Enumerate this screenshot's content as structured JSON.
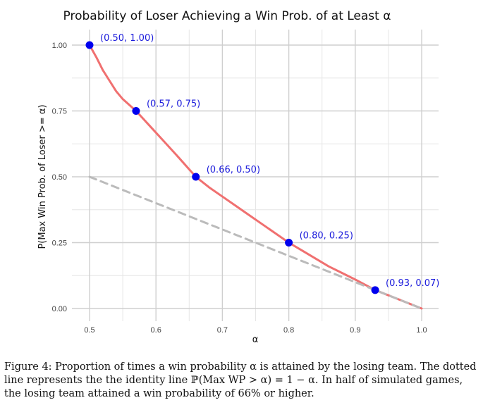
{
  "chart_data": {
    "type": "line",
    "title": "Probability of Loser Achieving a Win Prob. of at Least α",
    "xlabel": "α",
    "ylabel": "P(Max Win Prob. of Loser >= α)",
    "xlim": [
      0.5,
      1.0
    ],
    "ylim": [
      0.0,
      1.0
    ],
    "x_ticks": [
      "0.5",
      "0.6",
      "0.7",
      "0.8",
      "0.9",
      "1.0"
    ],
    "y_ticks": [
      "0.00",
      "0.25",
      "0.50",
      "0.75",
      "1.00"
    ],
    "grid": true,
    "series": [
      {
        "color": "#f07070",
        "style": "solid",
        "x": [
          0.5,
          0.51,
          0.52,
          0.53,
          0.54,
          0.55,
          0.57,
          0.59,
          0.61,
          0.63,
          0.66,
          0.68,
          0.7,
          0.72,
          0.74,
          0.76,
          0.78,
          0.8,
          0.82,
          0.84,
          0.86,
          0.88,
          0.9,
          0.93,
          0.96,
          1.0
        ],
        "y": [
          1.0,
          0.955,
          0.905,
          0.865,
          0.825,
          0.795,
          0.75,
          0.695,
          0.64,
          0.585,
          0.5,
          0.46,
          0.425,
          0.39,
          0.355,
          0.32,
          0.285,
          0.25,
          0.22,
          0.19,
          0.16,
          0.135,
          0.11,
          0.07,
          0.04,
          0.0
        ]
      },
      {
        "color": "#bbbbbb",
        "style": "dashed",
        "x": [
          0.5,
          1.0
        ],
        "y": [
          0.5,
          0.0
        ]
      }
    ],
    "points": [
      {
        "x": 0.5,
        "y": 1.0,
        "label": "(0.50, 1.00)"
      },
      {
        "x": 0.57,
        "y": 0.75,
        "label": "(0.57, 0.75)"
      },
      {
        "x": 0.66,
        "y": 0.5,
        "label": "(0.66, 0.50)"
      },
      {
        "x": 0.8,
        "y": 0.25,
        "label": "(0.80, 0.25)"
      },
      {
        "x": 0.93,
        "y": 0.07,
        "label": "(0.93, 0.07)"
      }
    ],
    "point_color": "#0000ee",
    "annotation_color": "#1a1adb"
  },
  "caption": "Figure 4: Proportion of times a win probability α is attained by the losing team. The dotted line represents the the identity line ℙ(Max WP > α) = 1 − α. In half of simulated games, the losing team attained a win probability of 66% or higher."
}
